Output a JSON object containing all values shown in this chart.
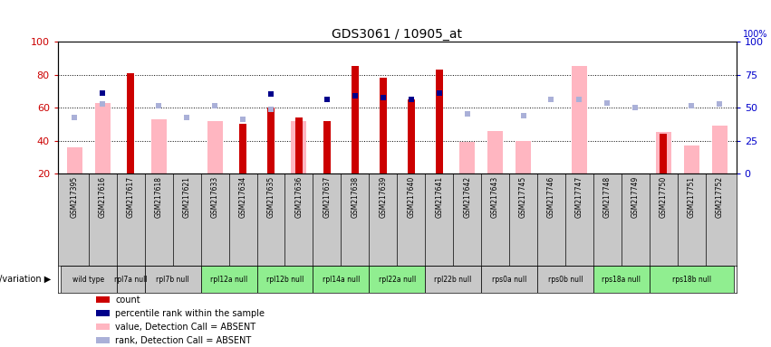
{
  "title": "GDS3061 / 10905_at",
  "samples": [
    "GSM217395",
    "GSM217616",
    "GSM217617",
    "GSM217618",
    "GSM217621",
    "GSM217633",
    "GSM217634",
    "GSM217635",
    "GSM217636",
    "GSM217637",
    "GSM217638",
    "GSM217639",
    "GSM217640",
    "GSM217641",
    "GSM217642",
    "GSM217643",
    "GSM217745",
    "GSM217746",
    "GSM217747",
    "GSM217748",
    "GSM217749",
    "GSM217750",
    "GSM217751",
    "GSM217752"
  ],
  "count": [
    null,
    null,
    81,
    null,
    null,
    null,
    50,
    60,
    54,
    52,
    85,
    78,
    65,
    83,
    null,
    null,
    null,
    null,
    null,
    null,
    null,
    44,
    null,
    null
  ],
  "percentile_rank": [
    null,
    69,
    null,
    null,
    null,
    null,
    null,
    68,
    null,
    65,
    67,
    66,
    65,
    69,
    null,
    null,
    null,
    null,
    null,
    null,
    null,
    null,
    null,
    null
  ],
  "value_absent": [
    36,
    63,
    null,
    53,
    null,
    52,
    null,
    null,
    52,
    null,
    null,
    null,
    null,
    null,
    39,
    46,
    40,
    null,
    85,
    null,
    null,
    45,
    37,
    49
  ],
  "rank_absent": [
    54,
    62,
    null,
    61,
    54,
    61,
    53,
    59,
    null,
    null,
    null,
    null,
    null,
    null,
    56,
    null,
    55,
    65,
    65,
    63,
    60,
    null,
    61,
    62
  ],
  "genotype_groups": [
    {
      "label": "wild type",
      "start": 0,
      "end": 2,
      "color": "#c8c8c8"
    },
    {
      "label": "rpl7a null",
      "start": 2,
      "end": 3,
      "color": "#c8c8c8"
    },
    {
      "label": "rpl7b null",
      "start": 3,
      "end": 5,
      "color": "#c8c8c8"
    },
    {
      "label": "rpl12a null",
      "start": 5,
      "end": 7,
      "color": "#90ee90"
    },
    {
      "label": "rpl12b null",
      "start": 7,
      "end": 9,
      "color": "#90ee90"
    },
    {
      "label": "rpl14a null",
      "start": 9,
      "end": 11,
      "color": "#90ee90"
    },
    {
      "label": "rpl22a null",
      "start": 11,
      "end": 13,
      "color": "#90ee90"
    },
    {
      "label": "rpl22b null",
      "start": 13,
      "end": 15,
      "color": "#c8c8c8"
    },
    {
      "label": "rps0a null",
      "start": 15,
      "end": 17,
      "color": "#c8c8c8"
    },
    {
      "label": "rps0b null",
      "start": 17,
      "end": 19,
      "color": "#c8c8c8"
    },
    {
      "label": "rps18a null",
      "start": 19,
      "end": 21,
      "color": "#90ee90"
    },
    {
      "label": "rps18b null",
      "start": 21,
      "end": 24,
      "color": "#90ee90"
    }
  ],
  "ylim_left": [
    20,
    100
  ],
  "ylim_right": [
    0,
    100
  ],
  "yticks_left": [
    20,
    40,
    60,
    80,
    100
  ],
  "yticks_right": [
    0,
    25,
    50,
    75,
    100
  ],
  "count_color": "#cc0000",
  "percentile_color": "#00008b",
  "value_absent_color": "#ffb6c1",
  "rank_absent_color": "#aab0d8",
  "legend_items": [
    {
      "label": "count",
      "color": "#cc0000"
    },
    {
      "label": "percentile rank within the sample",
      "color": "#00008b"
    },
    {
      "label": "value, Detection Call = ABSENT",
      "color": "#ffb6c1"
    },
    {
      "label": "rank, Detection Call = ABSENT",
      "color": "#aab0d8"
    }
  ],
  "font_color_left": "#cc0000",
  "font_color_right": "#0000cc",
  "xlabel_band_color": "#c8c8c8"
}
